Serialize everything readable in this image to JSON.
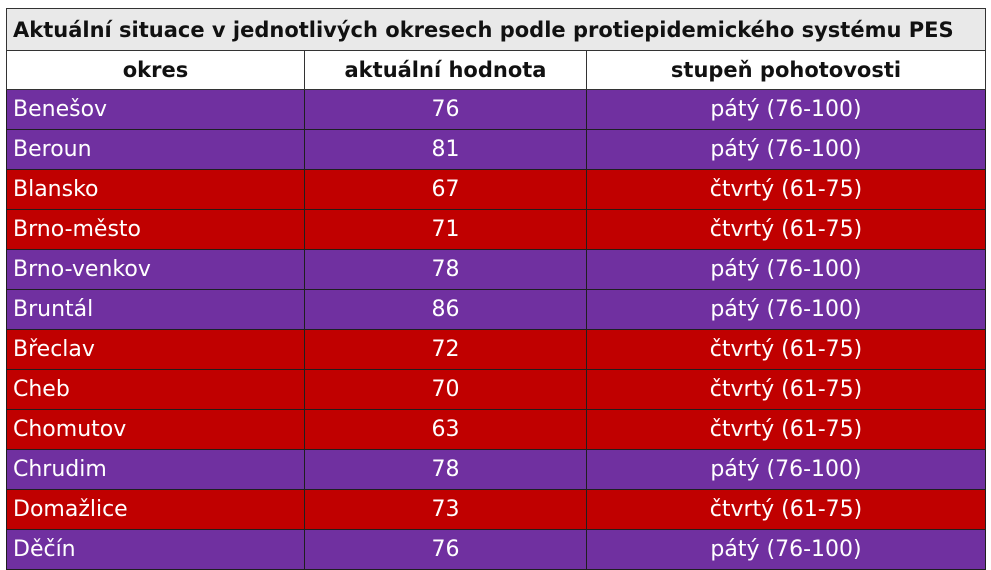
{
  "title": "Aktuální situace v jednotlivých okresech podle protiepidemického systému PES",
  "headers": {
    "district": "okres",
    "value": "aktuální hodnota",
    "level": "stupeň pohotovosti"
  },
  "colors": {
    "fifth_level": "#7030a0",
    "fourth_level": "#c00000"
  },
  "rows": [
    {
      "district": "Benešov",
      "value": "76",
      "level": "pátý (76-100)",
      "tier": "purple"
    },
    {
      "district": "Beroun",
      "value": "81",
      "level": "pátý (76-100)",
      "tier": "purple"
    },
    {
      "district": "Blansko",
      "value": "67",
      "level": "čtvrtý (61-75)",
      "tier": "red"
    },
    {
      "district": "Brno-město",
      "value": "71",
      "level": "čtvrtý (61-75)",
      "tier": "red"
    },
    {
      "district": "Brno-venkov",
      "value": "78",
      "level": "pátý (76-100)",
      "tier": "purple"
    },
    {
      "district": "Bruntál",
      "value": "86",
      "level": "pátý (76-100)",
      "tier": "purple"
    },
    {
      "district": "Břeclav",
      "value": "72",
      "level": "čtvrtý (61-75)",
      "tier": "red"
    },
    {
      "district": "Cheb",
      "value": "70",
      "level": "čtvrtý (61-75)",
      "tier": "red"
    },
    {
      "district": "Chomutov",
      "value": "63",
      "level": "čtvrtý (61-75)",
      "tier": "red"
    },
    {
      "district": "Chrudim",
      "value": "78",
      "level": "pátý (76-100)",
      "tier": "purple"
    },
    {
      "district": "Domažlice",
      "value": "73",
      "level": "čtvrtý (61-75)",
      "tier": "red"
    },
    {
      "district": "Děčín",
      "value": "76",
      "level": "pátý (76-100)",
      "tier": "purple"
    }
  ]
}
